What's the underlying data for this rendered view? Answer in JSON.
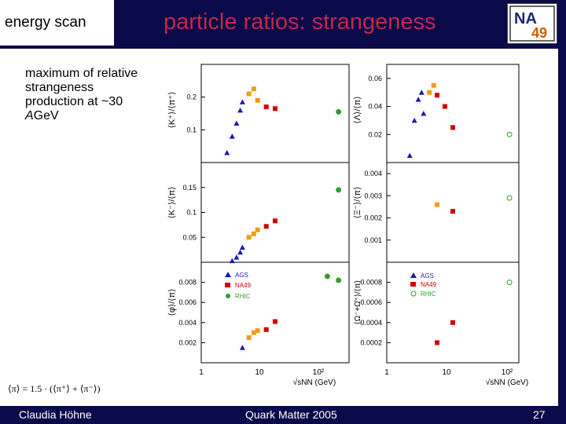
{
  "header": {
    "tab_label": "energy scan",
    "title": "particle ratios: strangeness",
    "logo_text_top": "NA",
    "logo_text_bottom": "49"
  },
  "note": {
    "line1": "maximum of relative",
    "line2": "strangeness",
    "line3": "production at ~30",
    "line4_italic": "A",
    "line4_rest": "GeV"
  },
  "formula": "⟨π⟩ = 1.5 · (⟨π⁺⟩ + ⟨π⁻⟩)",
  "footer": {
    "author": "Claudia Höhne",
    "conference": "Quark Matter 2005",
    "page": "27"
  },
  "colors": {
    "AGS": "#1a1ab4",
    "NA49_orange": "#f39c12",
    "NA49_red": "#d40000",
    "RHIC": "#2ca02c"
  },
  "chart_data": [
    {
      "type": "scatter",
      "panel": "K+/pi+ (left top)",
      "ylabel": "⟨K⁺⟩/⟨π⁺⟩",
      "yticks": [
        "0.1",
        "0.2"
      ],
      "ylim": [
        0.0,
        0.3
      ],
      "series": [
        {
          "name": "AGS",
          "x": [
            2.7,
            3.3,
            3.9,
            4.5,
            4.9
          ],
          "y": [
            0.03,
            0.08,
            0.12,
            0.16,
            0.185
          ]
        },
        {
          "name": "NA49 orange",
          "x": [
            6.3,
            7.6,
            8.8
          ],
          "y": [
            0.21,
            0.225,
            0.19
          ]
        },
        {
          "name": "NA49 red",
          "x": [
            12.3,
            17.3
          ],
          "y": [
            0.17,
            0.165
          ]
        },
        {
          "name": "RHIC",
          "x": [
            200
          ],
          "y": [
            0.155
          ]
        }
      ]
    },
    {
      "type": "scatter",
      "panel": "K-/pi (left middle)",
      "ylabel": "⟨K⁻⟩/⟨π⟩",
      "yticks": [
        "0.05",
        "0.1",
        "0.15"
      ],
      "ylim": [
        0.0,
        0.2
      ],
      "series": [
        {
          "name": "AGS",
          "x": [
            3.3,
            3.9,
            4.5,
            4.9
          ],
          "y": [
            0.003,
            0.01,
            0.02,
            0.03
          ]
        },
        {
          "name": "NA49 orange",
          "x": [
            6.3,
            7.6,
            8.8
          ],
          "y": [
            0.05,
            0.057,
            0.065
          ]
        },
        {
          "name": "NA49 red",
          "x": [
            12.3,
            17.3
          ],
          "y": [
            0.072,
            0.083
          ]
        },
        {
          "name": "RHIC",
          "x": [
            200
          ],
          "y": [
            0.145
          ]
        }
      ]
    },
    {
      "type": "scatter",
      "panel": "phi/pi (left bottom)",
      "ylabel": "⟨φ⟩/⟨π⟩",
      "yticks": [
        "0.002",
        "0.004",
        "0.006",
        "0.008"
      ],
      "ylim": [
        0.0,
        0.01
      ],
      "series": [
        {
          "name": "AGS",
          "x": [
            4.9
          ],
          "y": [
            0.0015
          ]
        },
        {
          "name": "NA49 orange",
          "x": [
            6.3,
            7.6,
            8.8
          ],
          "y": [
            0.0025,
            0.003,
            0.0032
          ]
        },
        {
          "name": "NA49 red",
          "x": [
            12.3,
            17.3
          ],
          "y": [
            0.0033,
            0.0041
          ]
        },
        {
          "name": "RHIC",
          "x": [
            130,
            200
          ],
          "y": [
            0.0086,
            0.0082
          ]
        }
      ]
    },
    {
      "type": "scatter",
      "panel": "Lambda/pi (right top)",
      "ylabel": "⟨Λ⟩/⟨π⟩",
      "yticks": [
        "0.02",
        "0.04",
        "0.06"
      ],
      "ylim": [
        0.0,
        0.07
      ],
      "series": [
        {
          "name": "AGS",
          "x": [
            2.7,
            3.3,
            3.9,
            4.5,
            4.9
          ],
          "y": [
            0.005,
            0.03,
            0.045,
            0.05,
            0.035
          ]
        },
        {
          "name": "NA49 orange",
          "x": [
            6.3,
            7.6
          ],
          "y": [
            0.05,
            0.055
          ]
        },
        {
          "name": "NA49 red",
          "x": [
            8.8,
            12.3,
            17.3
          ],
          "y": [
            0.048,
            0.04,
            0.025
          ]
        },
        {
          "name": "RHIC",
          "x": [
            200
          ],
          "y": [
            0.02
          ]
        }
      ]
    },
    {
      "type": "scatter",
      "panel": "Xi-/pi (right middle)",
      "ylabel": "⟨Ξ⁻⟩/⟨π⟩",
      "yticks": [
        "0.001",
        "0.002",
        "0.003",
        "0.004"
      ],
      "ylim": [
        0.0,
        0.0045
      ],
      "series": [
        {
          "name": "NA49 orange",
          "x": [
            8.8
          ],
          "y": [
            0.0026
          ]
        },
        {
          "name": "NA49 red",
          "x": [
            17.3
          ],
          "y": [
            0.0023
          ]
        },
        {
          "name": "RHIC",
          "x": [
            200
          ],
          "y": [
            0.0029
          ]
        }
      ]
    },
    {
      "type": "scatter",
      "panel": "Omega/pi (right bottom)",
      "ylabel": "⟨Ω⁻+Ω̄⁺⟩/⟨π⟩",
      "yticks": [
        "0.0002",
        "0.0004",
        "0.0006",
        "0.0008"
      ],
      "ylim": [
        0.0,
        0.001
      ],
      "series": [
        {
          "name": "NA49 red",
          "x": [
            8.8,
            17.3
          ],
          "y": [
            0.0002,
            0.0004
          ]
        },
        {
          "name": "RHIC",
          "x": [
            200
          ],
          "y": [
            0.0008
          ]
        }
      ]
    }
  ],
  "legend": [
    "AGS",
    "NA49",
    "RHIC"
  ],
  "x_axis": {
    "ticks": [
      "1",
      "10",
      "10²"
    ],
    "label": "√sNN (GeV)",
    "xlim": [
      1,
      300
    ]
  }
}
